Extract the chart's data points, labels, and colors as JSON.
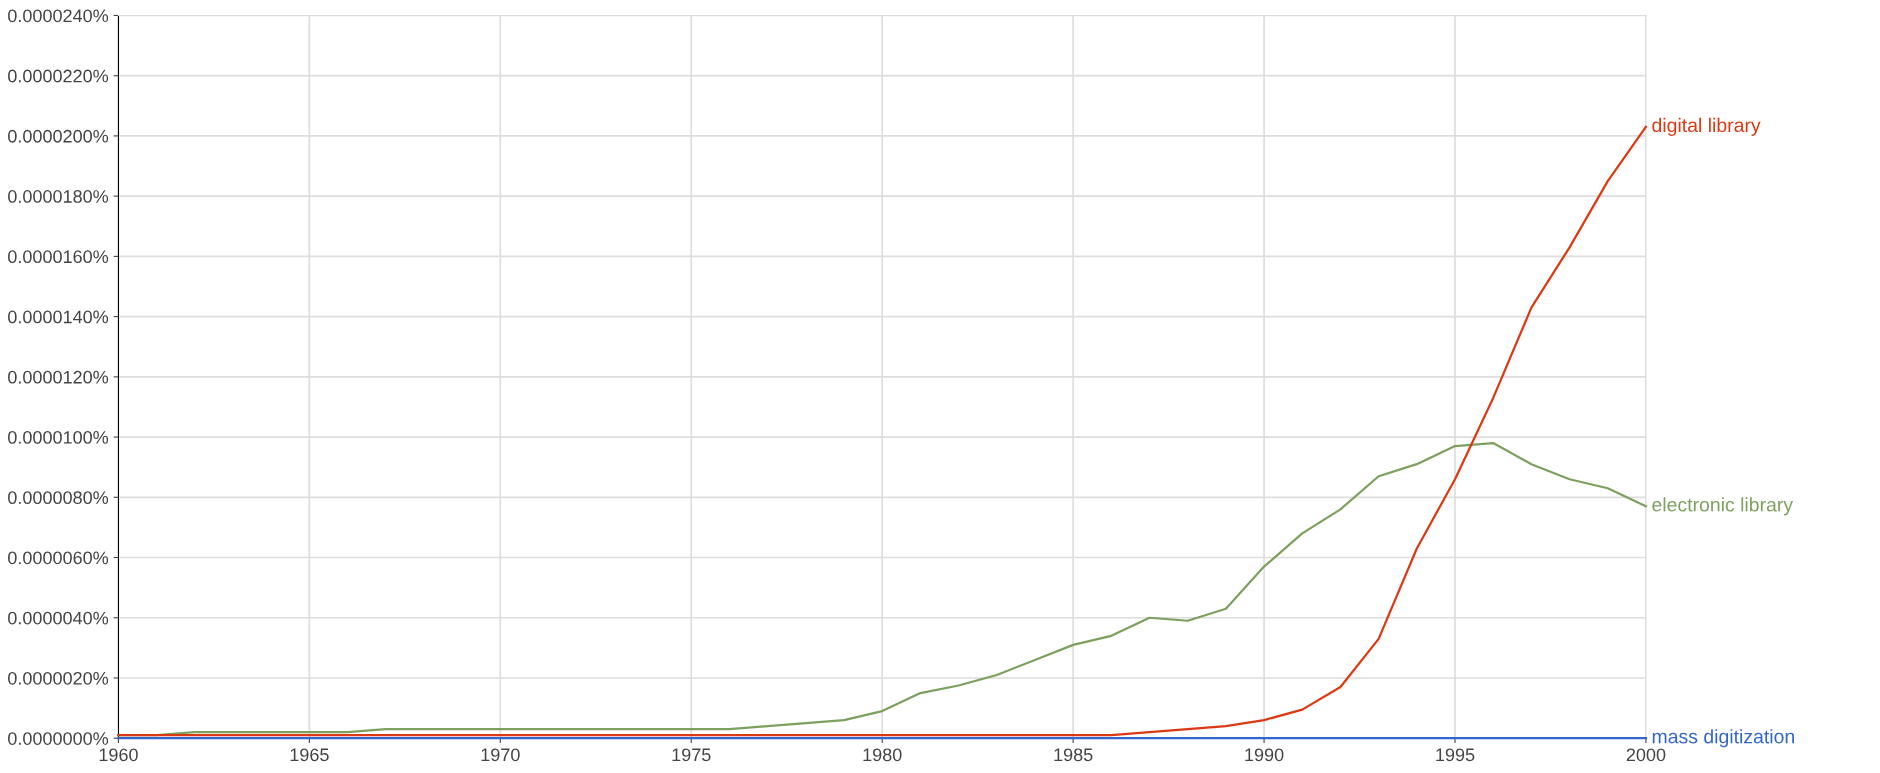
{
  "chart_data": {
    "type": "line",
    "x": [
      1960,
      1961,
      1962,
      1963,
      1964,
      1965,
      1966,
      1967,
      1968,
      1969,
      1970,
      1971,
      1972,
      1973,
      1974,
      1975,
      1976,
      1977,
      1978,
      1979,
      1980,
      1981,
      1982,
      1983,
      1984,
      1985,
      1986,
      1987,
      1988,
      1989,
      1990,
      1991,
      1992,
      1993,
      1994,
      1995,
      1996,
      1997,
      1998,
      1999,
      2000
    ],
    "series": [
      {
        "name": "digital library",
        "color": "#dc3912",
        "values": [
          1e-07,
          1e-07,
          1e-07,
          1e-07,
          1e-07,
          1e-07,
          1e-07,
          1e-07,
          1e-07,
          1e-07,
          1e-07,
          1e-07,
          1e-07,
          1e-07,
          1e-07,
          1e-07,
          1e-07,
          1e-07,
          1e-07,
          1e-07,
          1e-07,
          1e-07,
          1e-07,
          1e-07,
          1e-07,
          1e-07,
          1e-07,
          2e-07,
          3e-07,
          4e-07,
          6e-07,
          9.5e-07,
          1.7e-06,
          3.3e-06,
          6.3e-06,
          8.6e-06,
          1.13e-05,
          1.43e-05,
          1.63e-05,
          1.85e-05,
          2.03e-05
        ]
      },
      {
        "name": "electronic library",
        "color": "#7ca15f",
        "values": [
          1e-07,
          1e-07,
          2e-07,
          2e-07,
          2e-07,
          2e-07,
          2e-07,
          3e-07,
          3e-07,
          3e-07,
          3e-07,
          3e-07,
          3e-07,
          3e-07,
          3e-07,
          3e-07,
          3e-07,
          4e-07,
          5e-07,
          6e-07,
          9e-07,
          1.5e-06,
          1.75e-06,
          2.1e-06,
          2.6e-06,
          3.1e-06,
          3.4e-06,
          4e-06,
          3.9e-06,
          4.3e-06,
          5.7e-06,
          6.8e-06,
          7.6e-06,
          8.7e-06,
          9.1e-06,
          9.7e-06,
          9.8e-06,
          9.1e-06,
          8.6e-06,
          8.3e-06,
          7.7e-06
        ]
      },
      {
        "name": "mass digitization",
        "color": "#3366cc",
        "values": [
          0,
          0,
          0,
          0,
          0,
          0,
          0,
          0,
          0,
          0,
          0,
          0,
          0,
          0,
          0,
          0,
          0,
          0,
          0,
          0,
          0,
          0,
          0,
          0,
          0,
          0,
          0,
          0,
          0,
          0,
          0,
          0,
          0,
          0,
          0,
          0,
          0,
          0,
          0,
          0,
          0
        ]
      }
    ],
    "xlim": [
      1960,
      2000
    ],
    "xticks": [
      1960,
      1965,
      1970,
      1975,
      1980,
      1985,
      1990,
      1995,
      2000
    ],
    "ylim": [
      0,
      2.4e-05
    ],
    "yticks": [
      {
        "value": 0,
        "label": "0.0000000%"
      },
      {
        "value": 2e-06,
        "label": "0.0000020%"
      },
      {
        "value": 4e-06,
        "label": "0.0000040%"
      },
      {
        "value": 6e-06,
        "label": "0.0000060%"
      },
      {
        "value": 8e-06,
        "label": "0.0000080%"
      },
      {
        "value": 1e-05,
        "label": "0.0000100%"
      },
      {
        "value": 1.2e-05,
        "label": "0.0000120%"
      },
      {
        "value": 1.4e-05,
        "label": "0.0000140%"
      },
      {
        "value": 1.6e-05,
        "label": "0.0000160%"
      },
      {
        "value": 1.8e-05,
        "label": "0.0000180%"
      },
      {
        "value": 2e-05,
        "label": "0.0000200%"
      },
      {
        "value": 2.2e-05,
        "label": "0.0000220%"
      },
      {
        "value": 2.4e-05,
        "label": "0.0000240%"
      }
    ],
    "grid": true,
    "legend": false,
    "marker": "none",
    "line_style": "solid"
  }
}
